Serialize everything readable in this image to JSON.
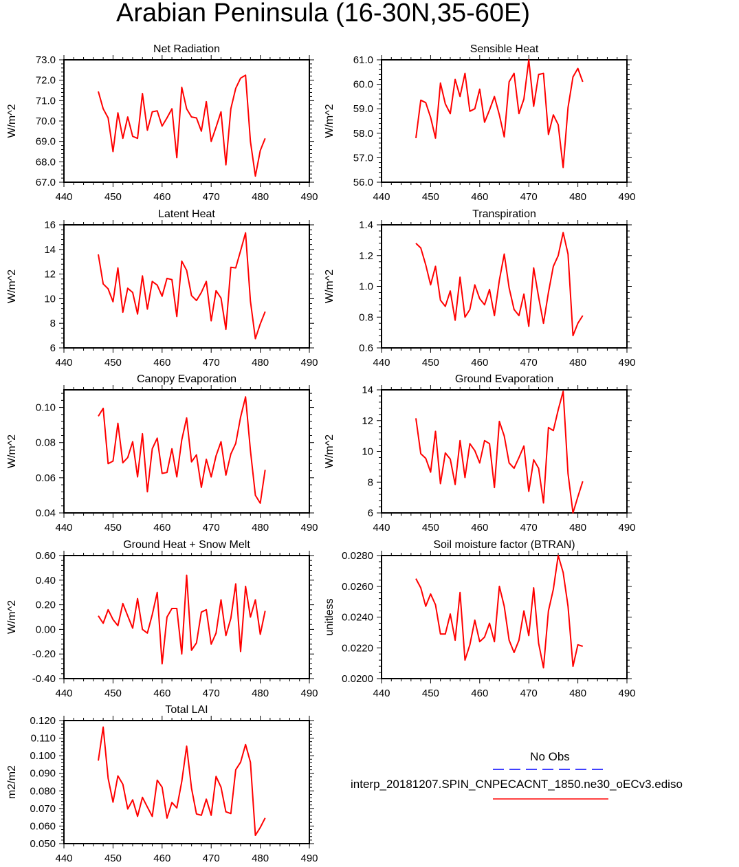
{
  "title": "Arabian Peninsula (16-30N,35-60E)",
  "chart_data": [
    {
      "type": "line",
      "title": "Net Radiation",
      "ylabel": "W/m^2",
      "xlim": [
        440,
        490
      ],
      "ylim": [
        67,
        73
      ],
      "xticks": [
        "440",
        "450",
        "460",
        "470",
        "480",
        "490"
      ],
      "yticks": [
        "67.0",
        "68.0",
        "69.0",
        "70.0",
        "71.0",
        "72.0",
        "73.0"
      ],
      "ytickvals": [
        67,
        68,
        69,
        70,
        71,
        72,
        73
      ],
      "series": [
        {
          "color": "#ff0000",
          "x": [
            447,
            448,
            449,
            450,
            451,
            452,
            453,
            454,
            455,
            456,
            457,
            458,
            459,
            460,
            461,
            462,
            463,
            464,
            465,
            466,
            467,
            468,
            469,
            470,
            471,
            472,
            473,
            474,
            475,
            476,
            477,
            478,
            479,
            480,
            481
          ],
          "y": [
            71.45,
            70.6,
            70.15,
            68.5,
            70.4,
            69.15,
            70.2,
            69.25,
            69.15,
            71.35,
            69.55,
            70.45,
            70.5,
            69.75,
            70.15,
            70.6,
            68.2,
            71.65,
            70.6,
            70.2,
            70.15,
            69.5,
            70.95,
            69.0,
            69.7,
            70.45,
            67.85,
            70.6,
            71.6,
            72.1,
            72.25,
            69.0,
            67.3,
            68.55,
            69.15
          ]
        }
      ]
    },
    {
      "type": "line",
      "title": "Sensible Heat",
      "ylabel": "W/m^2",
      "xlim": [
        440,
        490
      ],
      "ylim": [
        56,
        61
      ],
      "xticks": [
        "440",
        "450",
        "460",
        "470",
        "480",
        "490"
      ],
      "yticks": [
        "56.0",
        "57.0",
        "58.0",
        "59.0",
        "60.0",
        "61.0"
      ],
      "ytickvals": [
        56,
        57,
        58,
        59,
        60,
        61
      ],
      "series": [
        {
          "color": "#ff0000",
          "x": [
            447,
            448,
            449,
            450,
            451,
            452,
            453,
            454,
            455,
            456,
            457,
            458,
            459,
            460,
            461,
            462,
            463,
            464,
            465,
            466,
            467,
            468,
            469,
            470,
            471,
            472,
            473,
            474,
            475,
            476,
            477,
            478,
            479,
            480,
            481
          ],
          "y": [
            57.8,
            59.35,
            59.25,
            58.65,
            57.8,
            60.05,
            59.2,
            58.8,
            60.2,
            59.5,
            60.45,
            58.9,
            59.0,
            59.8,
            58.45,
            58.95,
            59.5,
            58.75,
            57.85,
            60.1,
            60.45,
            58.8,
            59.4,
            61.0,
            59.1,
            60.4,
            60.45,
            57.95,
            58.75,
            58.35,
            56.6,
            59.05,
            60.3,
            60.65,
            60.1
          ]
        }
      ]
    },
    {
      "type": "line",
      "title": "Latent Heat",
      "ylabel": "W/m^2",
      "xlim": [
        440,
        490
      ],
      "ylim": [
        6,
        16
      ],
      "xticks": [
        "440",
        "450",
        "460",
        "470",
        "480",
        "490"
      ],
      "yticks": [
        "6",
        "8",
        "10",
        "12",
        "14",
        "16"
      ],
      "ytickvals": [
        6,
        8,
        10,
        12,
        14,
        16
      ],
      "series": [
        {
          "color": "#ff0000",
          "x": [
            447,
            448,
            449,
            450,
            451,
            452,
            453,
            454,
            455,
            456,
            457,
            458,
            459,
            460,
            461,
            462,
            463,
            464,
            465,
            466,
            467,
            468,
            469,
            470,
            471,
            472,
            473,
            474,
            475,
            476,
            477,
            478,
            479,
            480,
            481
          ],
          "y": [
            13.6,
            11.2,
            10.8,
            9.75,
            12.5,
            8.9,
            10.85,
            10.5,
            8.75,
            11.85,
            9.15,
            11.4,
            11.1,
            10.2,
            11.65,
            11.55,
            8.55,
            13.05,
            12.3,
            10.25,
            9.85,
            10.5,
            11.4,
            8.2,
            10.65,
            10.05,
            7.5,
            12.55,
            12.5,
            13.9,
            15.35,
            9.8,
            6.75,
            7.95,
            8.95
          ]
        }
      ]
    },
    {
      "type": "line",
      "title": "Transpiration",
      "ylabel": "W/m^2",
      "xlim": [
        440,
        490
      ],
      "ylim": [
        0.6,
        1.4
      ],
      "xticks": [
        "440",
        "450",
        "460",
        "470",
        "480",
        "490"
      ],
      "yticks": [
        "0.6",
        "0.8",
        "1.0",
        "1.2",
        "1.4"
      ],
      "ytickvals": [
        0.6,
        0.8,
        1.0,
        1.2,
        1.4
      ],
      "series": [
        {
          "color": "#ff0000",
          "x": [
            447,
            448,
            449,
            450,
            451,
            452,
            453,
            454,
            455,
            456,
            457,
            458,
            459,
            460,
            461,
            462,
            463,
            464,
            465,
            466,
            467,
            468,
            469,
            470,
            471,
            472,
            473,
            474,
            475,
            476,
            477,
            478,
            479,
            480,
            481
          ],
          "y": [
            1.28,
            1.25,
            1.14,
            1.01,
            1.13,
            0.91,
            0.87,
            0.97,
            0.78,
            1.06,
            0.8,
            0.85,
            1.01,
            0.92,
            0.88,
            0.98,
            0.81,
            1.04,
            1.21,
            0.99,
            0.85,
            0.81,
            0.95,
            0.74,
            1.12,
            0.93,
            0.76,
            0.96,
            1.13,
            1.2,
            1.35,
            1.21,
            0.68,
            0.76,
            0.81
          ]
        }
      ]
    },
    {
      "type": "line",
      "title": "Canopy Evaporation",
      "ylabel": "W/m^2",
      "xlim": [
        440,
        490
      ],
      "ylim": [
        0.04,
        0.11
      ],
      "xticks": [
        "440",
        "450",
        "460",
        "470",
        "480",
        "490"
      ],
      "yticks": [
        "0.04",
        "0.06",
        "0.08",
        "0.10"
      ],
      "ytickvals": [
        0.04,
        0.06,
        0.08,
        0.1
      ],
      "series": [
        {
          "color": "#ff0000",
          "x": [
            447,
            448,
            449,
            450,
            451,
            452,
            453,
            454,
            455,
            456,
            457,
            458,
            459,
            460,
            461,
            462,
            463,
            464,
            465,
            466,
            467,
            468,
            469,
            470,
            471,
            472,
            473,
            474,
            475,
            476,
            477,
            478,
            479,
            480,
            481
          ],
          "y": [
            0.095,
            0.0995,
            0.068,
            0.0695,
            0.091,
            0.0685,
            0.0715,
            0.0805,
            0.0605,
            0.085,
            0.052,
            0.0765,
            0.0825,
            0.0625,
            0.063,
            0.0765,
            0.0605,
            0.0815,
            0.094,
            0.069,
            0.073,
            0.0545,
            0.0705,
            0.0605,
            0.0725,
            0.0805,
            0.0615,
            0.0735,
            0.0795,
            0.0945,
            0.106,
            0.0755,
            0.05,
            0.0455,
            0.0645
          ]
        }
      ]
    },
    {
      "type": "line",
      "title": "Ground Evaporation",
      "ylabel": "W/m^2",
      "xlim": [
        440,
        490
      ],
      "ylim": [
        6,
        14
      ],
      "xticks": [
        "440",
        "450",
        "460",
        "470",
        "480",
        "490"
      ],
      "yticks": [
        "6",
        "8",
        "10",
        "12",
        "14"
      ],
      "ytickvals": [
        6,
        8,
        10,
        12,
        14
      ],
      "series": [
        {
          "color": "#ff0000",
          "x": [
            447,
            448,
            449,
            450,
            451,
            452,
            453,
            454,
            455,
            456,
            457,
            458,
            459,
            460,
            461,
            462,
            463,
            464,
            465,
            466,
            467,
            468,
            469,
            470,
            471,
            472,
            473,
            474,
            475,
            476,
            477,
            478,
            479,
            480,
            481
          ],
          "y": [
            12.15,
            9.85,
            9.55,
            8.65,
            11.3,
            7.9,
            9.9,
            9.5,
            7.85,
            10.7,
            8.3,
            10.5,
            10.05,
            9.25,
            10.7,
            10.5,
            7.65,
            11.95,
            11.0,
            9.25,
            8.9,
            9.6,
            10.35,
            7.4,
            9.45,
            8.9,
            6.65,
            11.55,
            11.35,
            12.7,
            13.9,
            8.55,
            6.0,
            7.05,
            8.05
          ]
        }
      ]
    },
    {
      "type": "line",
      "title": "Ground Heat + Snow Melt",
      "ylabel": "W/m^2",
      "xlim": [
        440,
        490
      ],
      "ylim": [
        -0.4,
        0.6
      ],
      "xticks": [
        "440",
        "450",
        "460",
        "470",
        "480",
        "490"
      ],
      "yticks": [
        "-0.40",
        "-0.20",
        "0.00",
        "0.20",
        "0.40",
        "0.60"
      ],
      "ytickvals": [
        -0.4,
        -0.2,
        0,
        0.2,
        0.4,
        0.6
      ],
      "series": [
        {
          "color": "#ff0000",
          "x": [
            447,
            448,
            449,
            450,
            451,
            452,
            453,
            454,
            455,
            456,
            457,
            458,
            459,
            460,
            461,
            462,
            463,
            464,
            465,
            466,
            467,
            468,
            469,
            470,
            471,
            472,
            473,
            474,
            475,
            476,
            477,
            478,
            479,
            480,
            481
          ],
          "y": [
            0.11,
            0.05,
            0.16,
            0.08,
            0.03,
            0.21,
            0.11,
            0.01,
            0.25,
            0.0,
            -0.03,
            0.12,
            0.3,
            -0.28,
            0.1,
            0.17,
            0.17,
            -0.2,
            0.44,
            -0.17,
            -0.11,
            0.14,
            0.16,
            -0.12,
            -0.03,
            0.24,
            -0.05,
            0.09,
            0.37,
            -0.18,
            0.35,
            0.1,
            0.24,
            -0.04,
            0.15
          ]
        }
      ]
    },
    {
      "type": "line",
      "title": "Soil moisture factor (BTRAN)",
      "ylabel": "unitless",
      "xlim": [
        440,
        490
      ],
      "ylim": [
        0.02,
        0.028
      ],
      "xticks": [
        "440",
        "450",
        "460",
        "470",
        "480",
        "490"
      ],
      "yticks": [
        "0.0200",
        "0.0220",
        "0.0240",
        "0.0260",
        "0.0280"
      ],
      "ytickvals": [
        0.02,
        0.022,
        0.024,
        0.026,
        0.028
      ],
      "series": [
        {
          "color": "#ff0000",
          "x": [
            447,
            448,
            449,
            450,
            451,
            452,
            453,
            454,
            455,
            456,
            457,
            458,
            459,
            460,
            461,
            462,
            463,
            464,
            465,
            466,
            467,
            468,
            469,
            470,
            471,
            472,
            473,
            474,
            475,
            476,
            477,
            478,
            479,
            480,
            481
          ],
          "y": [
            0.0265,
            0.0259,
            0.0247,
            0.0255,
            0.0248,
            0.0229,
            0.0229,
            0.0242,
            0.0225,
            0.0256,
            0.0212,
            0.0222,
            0.0238,
            0.0224,
            0.0227,
            0.0236,
            0.0224,
            0.026,
            0.0247,
            0.0225,
            0.0217,
            0.0225,
            0.0244,
            0.0228,
            0.0259,
            0.0223,
            0.0207,
            0.0244,
            0.0258,
            0.028,
            0.0269,
            0.0247,
            0.0208,
            0.0222,
            0.0221
          ]
        }
      ]
    },
    {
      "type": "line",
      "title": "Total LAI",
      "ylabel": "m2/m2",
      "xlim": [
        440,
        490
      ],
      "ylim": [
        0.05,
        0.12
      ],
      "xticks": [
        "440",
        "450",
        "460",
        "470",
        "480",
        "490"
      ],
      "yticks": [
        "0.050",
        "0.060",
        "0.070",
        "0.080",
        "0.090",
        "0.100",
        "0.110",
        "0.120"
      ],
      "ytickvals": [
        0.05,
        0.06,
        0.07,
        0.08,
        0.09,
        0.1,
        0.11,
        0.12
      ],
      "series": [
        {
          "color": "#ff0000",
          "x": [
            447,
            448,
            449,
            450,
            451,
            452,
            453,
            454,
            455,
            456,
            457,
            458,
            459,
            460,
            461,
            462,
            463,
            464,
            465,
            466,
            467,
            468,
            469,
            470,
            471,
            472,
            473,
            474,
            475,
            476,
            477,
            478,
            479,
            480,
            481
          ],
          "y": [
            0.0972,
            0.1163,
            0.0872,
            0.0736,
            0.0885,
            0.0838,
            0.0697,
            0.0749,
            0.0655,
            0.0763,
            0.0708,
            0.0655,
            0.0861,
            0.0821,
            0.0645,
            0.0734,
            0.0703,
            0.0853,
            0.1054,
            0.0815,
            0.0669,
            0.0661,
            0.0753,
            0.0661,
            0.0882,
            0.0821,
            0.0681,
            0.0671,
            0.092,
            0.0963,
            0.1064,
            0.0963,
            0.0547,
            0.0592,
            0.0646
          ]
        }
      ]
    }
  ],
  "legend": {
    "entries": [
      {
        "label": "No Obs",
        "color": "#0000ff",
        "style": "dashed"
      },
      {
        "label": "interp_20181207.SPIN_CNPECACNT_1850.ne30_oECv3.ediso",
        "color": "#ff0000",
        "style": "solid"
      }
    ]
  }
}
